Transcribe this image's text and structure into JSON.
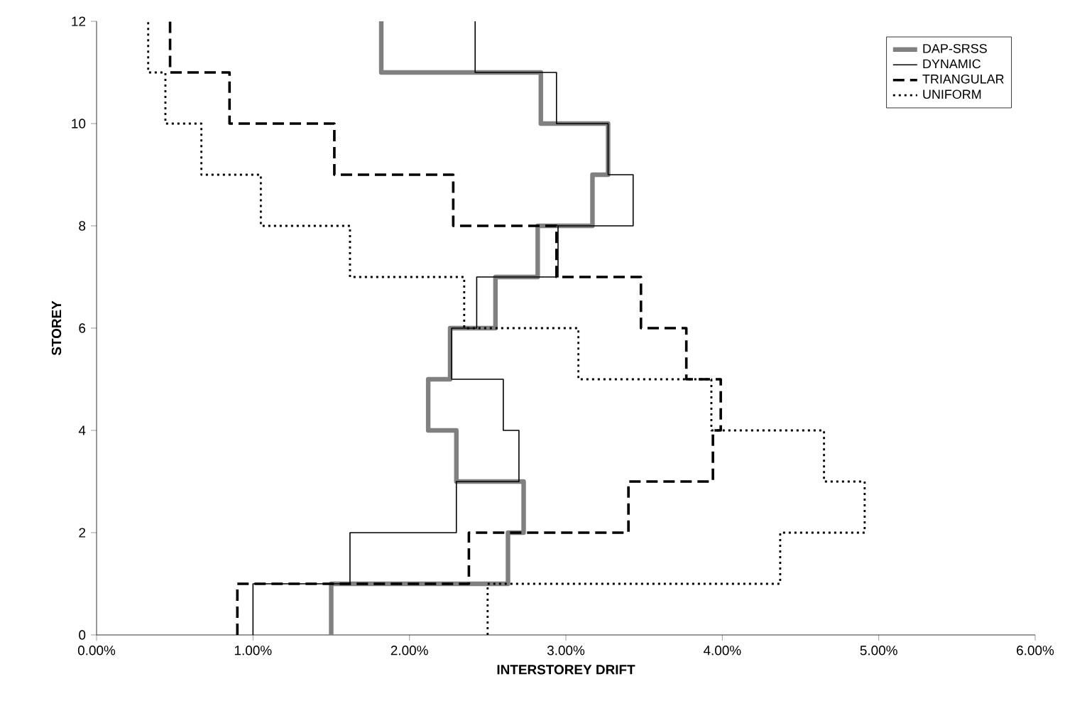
{
  "chart_data": {
    "type": "line",
    "xlabel": "INTERSTOREY DRIFT",
    "ylabel": "STOREY",
    "xlim": [
      0,
      6
    ],
    "ylim": [
      0,
      12
    ],
    "xticks": [
      {
        "value": 0,
        "label": "0.00%"
      },
      {
        "value": 1,
        "label": "1.00%"
      },
      {
        "value": 2,
        "label": "2.00%"
      },
      {
        "value": 3,
        "label": "3.00%"
      },
      {
        "value": 4,
        "label": "4.00%"
      },
      {
        "value": 5,
        "label": "5.00%"
      },
      {
        "value": 6,
        "label": "6.00%"
      }
    ],
    "yticks": [
      0,
      2,
      4,
      6,
      8,
      10,
      12
    ],
    "grid": false,
    "legend": "top right",
    "marker": "none",
    "series": [
      {
        "name": "DAP-SRSS",
        "color": "#808080",
        "line_style": "solid",
        "x": [
          1.5,
          1.5,
          2.63,
          2.63,
          2.73,
          2.73,
          2.3,
          2.3,
          2.12,
          2.12,
          2.26,
          2.26,
          2.55,
          2.55,
          2.82,
          2.82,
          3.17,
          3.17,
          3.27,
          3.27,
          2.84,
          2.84,
          1.82,
          1.82
        ],
        "values": [
          0,
          1,
          1,
          2,
          2,
          3,
          3,
          4,
          4,
          5,
          5,
          6,
          6,
          7,
          7,
          8,
          8,
          9,
          9,
          10,
          10,
          11,
          11,
          12
        ]
      },
      {
        "name": "DYNAMIC",
        "color": "#000000",
        "line_style": "solid",
        "x": [
          1.0,
          1.0,
          1.62,
          1.62,
          2.3,
          2.3,
          2.7,
          2.7,
          2.6,
          2.6,
          2.27,
          2.27,
          2.43,
          2.43,
          2.95,
          2.95,
          3.43,
          3.43,
          3.27,
          3.27,
          2.94,
          2.94,
          2.42,
          2.42
        ],
        "values": [
          0,
          1,
          1,
          2,
          2,
          3,
          3,
          4,
          4,
          5,
          5,
          6,
          6,
          7,
          7,
          8,
          8,
          9,
          9,
          10,
          10,
          11,
          11,
          12
        ]
      },
      {
        "name": "TRIANGULAR",
        "color": "#000000",
        "line_style": "dashed",
        "x": [
          0.9,
          0.9,
          2.38,
          2.38,
          3.4,
          3.4,
          3.94,
          3.94,
          3.99,
          3.99,
          3.77,
          3.77,
          3.48,
          3.48,
          2.94,
          2.94,
          2.28,
          2.28,
          1.52,
          1.52,
          0.85,
          0.85,
          0.47,
          0.47
        ],
        "values": [
          0,
          1,
          1,
          2,
          2,
          3,
          3,
          4,
          4,
          5,
          5,
          6,
          6,
          7,
          7,
          8,
          8,
          9,
          9,
          10,
          10,
          11,
          11,
          12
        ]
      },
      {
        "name": "UNIFORM",
        "color": "#000000",
        "line_style": "dotted",
        "x": [
          2.5,
          2.5,
          4.37,
          4.37,
          4.91,
          4.91,
          4.65,
          4.65,
          3.93,
          3.93,
          3.08,
          3.08,
          2.35,
          2.35,
          1.62,
          1.62,
          1.05,
          1.05,
          0.67,
          0.67,
          0.44,
          0.44,
          0.33,
          0.33
        ],
        "values": [
          0,
          1,
          1,
          2,
          2,
          3,
          3,
          4,
          4,
          5,
          5,
          6,
          6,
          7,
          7,
          8,
          8,
          9,
          9,
          10,
          10,
          11,
          11,
          12
        ]
      }
    ]
  }
}
